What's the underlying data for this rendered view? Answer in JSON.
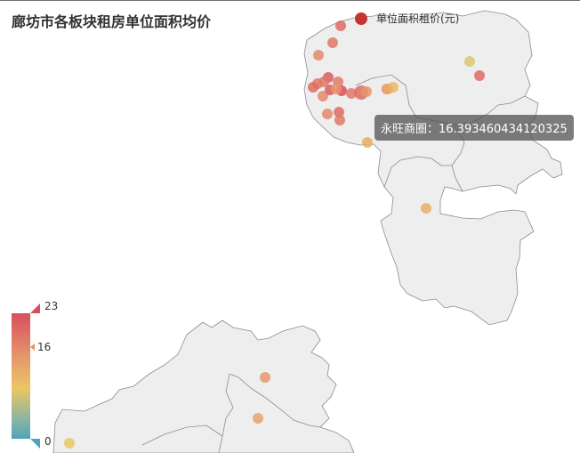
{
  "title": "廊坊市各板块租房单位面积均价",
  "legend": {
    "label": "单位面积租价(元)",
    "color": "#c23531"
  },
  "tooltip": {
    "text": "永旺商圈：16.393460434120325"
  },
  "visual_map": {
    "max": "23",
    "current": "16",
    "min": "0"
  },
  "colors": {
    "high": "#d94e5d",
    "mid": "#eac763",
    "low": "#50a3ba",
    "region_fill": "#eeeeee",
    "region_stroke": "#8c8c8c"
  },
  "chart_data": {
    "type": "scatter",
    "title": "廊坊市各板块租房单位面积均价",
    "series": [
      {
        "name": "单位面积租价(元)",
        "values": [
          21,
          20,
          19,
          22,
          20,
          21,
          20,
          19,
          22,
          23,
          20,
          21,
          19,
          20,
          21,
          18,
          20,
          15,
          16,
          16,
          13,
          21,
          18,
          17,
          14,
          20,
          18,
          16
        ]
      }
    ],
    "highlighted": {
      "name": "永旺商圈",
      "value": 16.393460434120325
    },
    "visual_map": {
      "min": 0,
      "max": 23
    }
  }
}
